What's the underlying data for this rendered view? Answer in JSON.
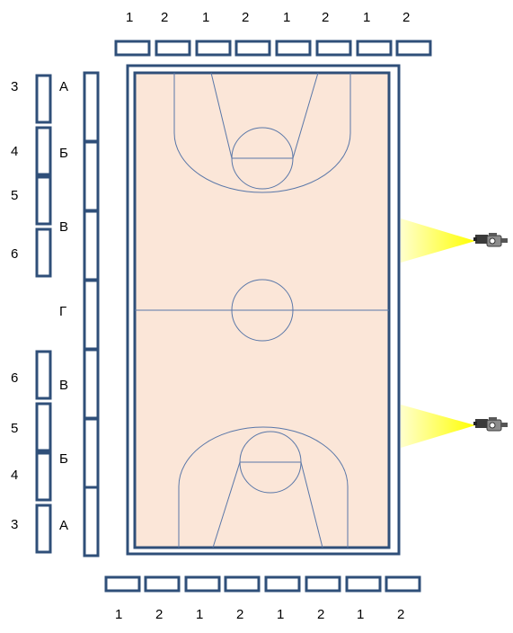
{
  "top_labels": [
    "1",
    "2",
    "1",
    "2",
    "1",
    "2",
    "1",
    "2"
  ],
  "bottom_labels": [
    "1",
    "2",
    "1",
    "2",
    "1",
    "2",
    "1",
    "2"
  ],
  "left_numbers_top": [
    "3",
    "4",
    "5",
    "6"
  ],
  "left_numbers_bottom": [
    "6",
    "5",
    "4",
    "3"
  ],
  "sector_letters": [
    "А",
    "Б",
    "В",
    "Г",
    "В",
    "Б",
    "А"
  ],
  "colors": {
    "stand_stroke": "#2f4f79",
    "court_fill": "#fbe6d8",
    "court_line": "#5a77a8",
    "floodlight": "#ffff00",
    "camera": "camera-icon"
  }
}
